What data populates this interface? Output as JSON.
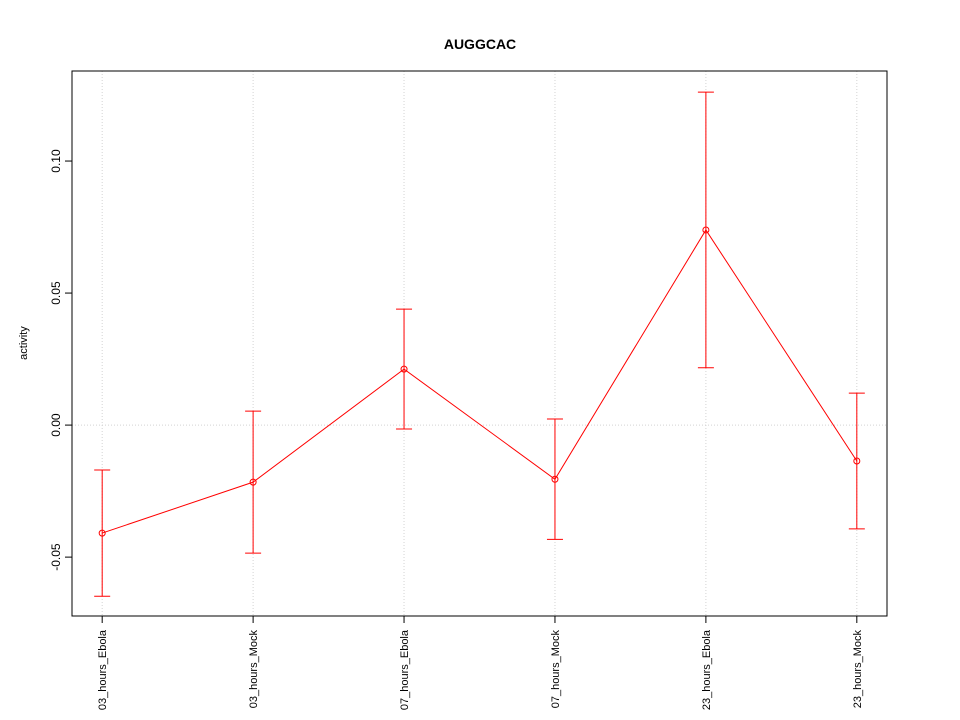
{
  "chart_data": {
    "type": "line",
    "title": "AUGGCAC",
    "y_label": "activity",
    "categories": [
      "03_hours_Ebola",
      "03_hours_Mock",
      "07_hours_Ebola",
      "07_hours_Mock",
      "23_hours_Ebola",
      "23_hours_Mock"
    ],
    "series": [
      {
        "name": "activity",
        "color": "#ff0000",
        "values": [
          -0.0409,
          -0.0216,
          0.0212,
          -0.0205,
          0.0739,
          -0.0136
        ],
        "errors": [
          0.0239,
          0.0269,
          0.0227,
          0.0228,
          0.0522,
          0.0257
        ]
      }
    ],
    "ylim": [
      -0.0723,
      0.1341
    ],
    "yticks": [
      {
        "value": -0.05,
        "label": "-0.05"
      },
      {
        "value": 0,
        "label": "0.00"
      },
      0.05,
      {
        "value": 0.1,
        "label": "0.10"
      }
    ],
    "x_grid": true,
    "reference_line": 0
  }
}
